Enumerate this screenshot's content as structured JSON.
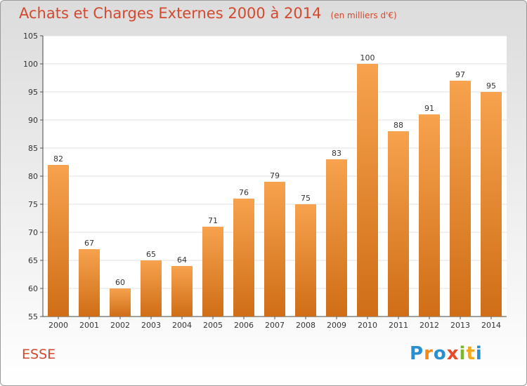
{
  "chart_data": {
    "type": "bar",
    "title": "Achats et Charges Externes 2000 à 2014",
    "subtitle": "(en milliers d'€)",
    "categories": [
      "2000",
      "2001",
      "2002",
      "2003",
      "2004",
      "2005",
      "2006",
      "2007",
      "2008",
      "2009",
      "2010",
      "2011",
      "2012",
      "2013",
      "2014"
    ],
    "values": [
      82,
      67,
      60,
      65,
      64,
      71,
      76,
      79,
      75,
      83,
      100,
      88,
      91,
      97,
      95
    ],
    "data_labels": [
      "82",
      "67",
      "60",
      "65",
      "64",
      "71",
      "76",
      "79",
      "75",
      "83",
      "100",
      "88",
      "91",
      "97",
      "95"
    ],
    "xlabel": "",
    "ylabel": "",
    "ylim": [
      55,
      105
    ],
    "yticks": [
      "55",
      "60",
      "65",
      "70",
      "75",
      "80",
      "85",
      "90",
      "95",
      "100",
      "105"
    ],
    "grid": true,
    "legend": "none",
    "bar_color": "#f0922f"
  },
  "footer": {
    "commune": "ESSE",
    "logo_letters": [
      {
        "ch": "P",
        "color": "#2a8fd0"
      },
      {
        "ch": "r",
        "color": "#f08a1c"
      },
      {
        "ch": "o",
        "color": "#2a8fd0"
      },
      {
        "ch": "x",
        "color": "#e84a2b"
      },
      {
        "ch": "i",
        "color": "#7ab829"
      },
      {
        "ch": "t",
        "color": "#f2a81d"
      },
      {
        "ch": "i",
        "color": "#2a8fd0"
      }
    ]
  }
}
